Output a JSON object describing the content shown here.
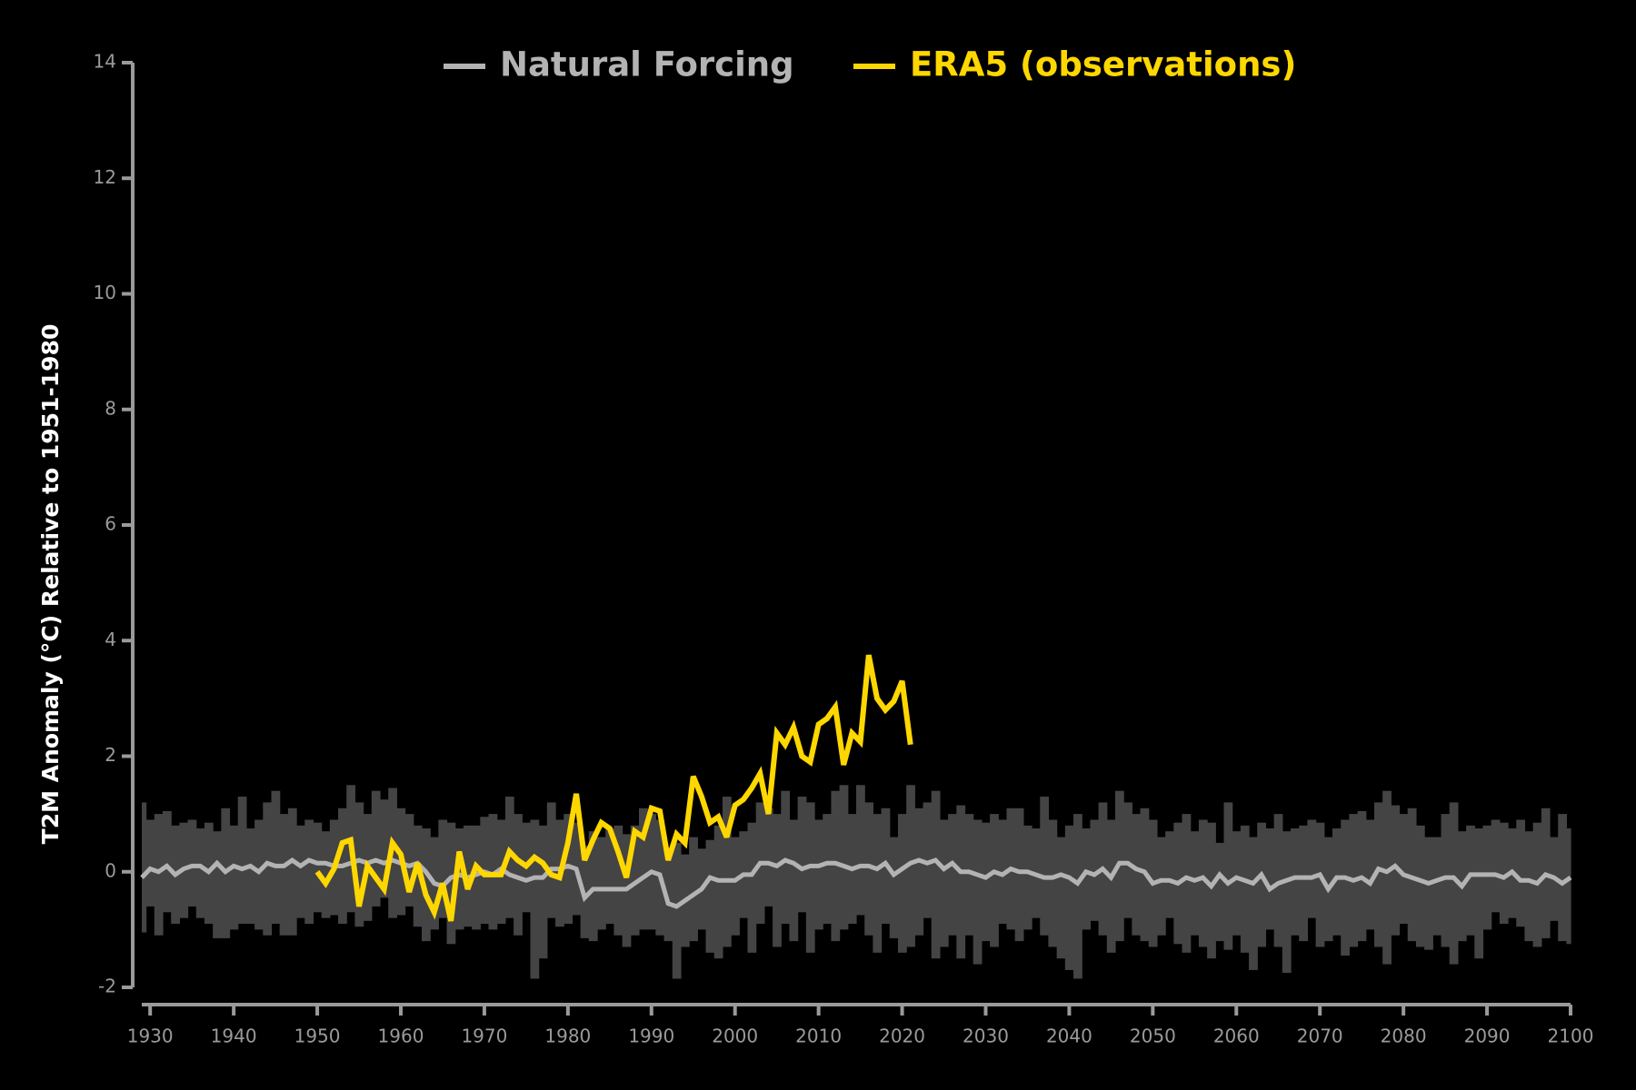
{
  "chart_data": {
    "type": "line",
    "ylabel": "T2M Anomaly (°C) Relative to 1951-1980",
    "xlim": [
      1929,
      2100
    ],
    "ylim": [
      -2,
      14
    ],
    "xticks": [
      1930,
      1940,
      1950,
      1960,
      1970,
      1980,
      1990,
      2000,
      2010,
      2020,
      2030,
      2040,
      2050,
      2060,
      2070,
      2080,
      2090,
      2100
    ],
    "yticks": [
      -2,
      0,
      2,
      4,
      6,
      8,
      10,
      12,
      14
    ],
    "legend": "top",
    "series": [
      {
        "name": "Natural Forcing",
        "color": "#b3b3b3",
        "band_color": "#444444",
        "x": [
          1929,
          1930,
          1931,
          1932,
          1933,
          1934,
          1935,
          1936,
          1937,
          1938,
          1939,
          1940,
          1941,
          1942,
          1943,
          1944,
          1945,
          1946,
          1947,
          1948,
          1949,
          1950,
          1951,
          1952,
          1953,
          1954,
          1955,
          1956,
          1957,
          1958,
          1959,
          1960,
          1961,
          1962,
          1963,
          1964,
          1965,
          1966,
          1967,
          1968,
          1969,
          1970,
          1971,
          1972,
          1973,
          1974,
          1975,
          1976,
          1977,
          1978,
          1979,
          1980,
          1981,
          1982,
          1983,
          1984,
          1985,
          1986,
          1987,
          1988,
          1989,
          1990,
          1991,
          1992,
          1993,
          1994,
          1995,
          1996,
          1997,
          1998,
          1999,
          2000,
          2001,
          2002,
          2003,
          2004,
          2005,
          2006,
          2007,
          2008,
          2009,
          2010,
          2011,
          2012,
          2013,
          2014,
          2015,
          2016,
          2017,
          2018,
          2019,
          2020,
          2021,
          2022,
          2023,
          2024,
          2025,
          2026,
          2027,
          2028,
          2029,
          2030,
          2031,
          2032,
          2033,
          2034,
          2035,
          2036,
          2037,
          2038,
          2039,
          2040,
          2041,
          2042,
          2043,
          2044,
          2045,
          2046,
          2047,
          2048,
          2049,
          2050,
          2051,
          2052,
          2053,
          2054,
          2055,
          2056,
          2057,
          2058,
          2059,
          2060,
          2061,
          2062,
          2063,
          2064,
          2065,
          2066,
          2067,
          2068,
          2069,
          2070,
          2071,
          2072,
          2073,
          2074,
          2075,
          2076,
          2077,
          2078,
          2079,
          2080,
          2081,
          2082,
          2083,
          2084,
          2085,
          2086,
          2087,
          2088,
          2089,
          2090,
          2091,
          2092,
          2093,
          2094,
          2095,
          2096,
          2097,
          2098,
          2099,
          2100
        ],
        "values": [
          -0.1,
          0.05,
          0.0,
          0.1,
          -0.05,
          0.05,
          0.1,
          0.1,
          0.0,
          0.15,
          0.0,
          0.1,
          0.05,
          0.1,
          0.0,
          0.15,
          0.1,
          0.1,
          0.2,
          0.1,
          0.2,
          0.15,
          0.15,
          0.1,
          0.1,
          0.15,
          0.2,
          0.15,
          0.2,
          0.15,
          0.2,
          0.15,
          0.1,
          0.15,
          0.0,
          -0.2,
          -0.25,
          -0.1,
          -0.05,
          -0.1,
          -0.05,
          0.0,
          -0.05,
          0.05,
          -0.05,
          -0.1,
          -0.15,
          -0.1,
          -0.1,
          0.05,
          0.05,
          0.1,
          0.05,
          -0.45,
          -0.3,
          -0.3,
          -0.3,
          -0.3,
          -0.3,
          -0.2,
          -0.1,
          0.0,
          -0.05,
          -0.55,
          -0.6,
          -0.5,
          -0.4,
          -0.3,
          -0.1,
          -0.15,
          -0.15,
          -0.15,
          -0.05,
          -0.05,
          0.15,
          0.15,
          0.1,
          0.2,
          0.15,
          0.05,
          0.1,
          0.1,
          0.15,
          0.15,
          0.1,
          0.05,
          0.1,
          0.1,
          0.05,
          0.15,
          -0.05,
          0.05,
          0.15,
          0.2,
          0.15,
          0.2,
          0.05,
          0.15,
          0.0,
          0.0,
          -0.05,
          -0.1,
          0.0,
          -0.05,
          0.05,
          0.0,
          0.0,
          -0.05,
          -0.1,
          -0.1,
          -0.05,
          -0.1,
          -0.2,
          0.0,
          -0.05,
          0.05,
          -0.1,
          0.15,
          0.15,
          0.05,
          0.0,
          -0.2,
          -0.15,
          -0.15,
          -0.2,
          -0.1,
          -0.15,
          -0.1,
          -0.25,
          -0.05,
          -0.2,
          -0.1,
          -0.15,
          -0.2,
          -0.05,
          -0.3,
          -0.2,
          -0.15,
          -0.1,
          -0.1,
          -0.1,
          -0.05,
          -0.3,
          -0.1,
          -0.1,
          -0.15,
          -0.1,
          -0.2,
          0.05,
          0.0,
          0.1,
          -0.05,
          -0.1,
          -0.15,
          -0.2,
          -0.15,
          -0.1,
          -0.1,
          -0.25,
          -0.05,
          -0.05,
          -0.05,
          -0.05,
          -0.1,
          0.0,
          -0.15,
          -0.15,
          -0.2,
          -0.05,
          -0.1,
          -0.2,
          -0.1
        ],
        "band_upper": [
          1.2,
          0.9,
          1.0,
          1.05,
          0.8,
          0.85,
          0.9,
          0.75,
          0.85,
          0.7,
          1.1,
          0.8,
          1.3,
          0.75,
          0.9,
          1.2,
          1.4,
          1.0,
          1.1,
          0.8,
          0.9,
          0.85,
          0.7,
          0.9,
          1.1,
          1.5,
          1.2,
          1.0,
          1.4,
          1.25,
          1.45,
          1.1,
          1.0,
          0.8,
          0.75,
          0.6,
          0.9,
          0.85,
          0.75,
          0.8,
          0.8,
          0.95,
          1.0,
          0.9,
          1.3,
          1.0,
          0.85,
          0.9,
          0.8,
          1.2,
          0.9,
          1.0,
          0.85,
          0.45,
          0.7,
          0.6,
          0.75,
          0.8,
          0.65,
          0.8,
          1.1,
          1.0,
          0.9,
          0.35,
          0.5,
          0.3,
          0.6,
          0.4,
          0.55,
          0.8,
          1.3,
          0.6,
          0.7,
          0.85,
          1.2,
          1.1,
          1.0,
          1.4,
          0.9,
          1.3,
          1.2,
          0.9,
          1.0,
          1.4,
          1.5,
          1.0,
          1.5,
          1.2,
          1.0,
          1.1,
          0.6,
          1.0,
          1.5,
          1.1,
          1.2,
          1.4,
          0.9,
          1.0,
          1.15,
          1.0,
          0.9,
          0.85,
          1.0,
          0.9,
          1.1,
          1.1,
          0.8,
          0.75,
          1.3,
          0.9,
          0.6,
          0.8,
          1.0,
          0.75,
          0.9,
          1.2,
          0.9,
          1.4,
          1.2,
          1.0,
          1.1,
          0.9,
          0.6,
          0.7,
          0.85,
          1.0,
          0.7,
          0.9,
          0.85,
          0.5,
          1.2,
          0.7,
          0.8,
          0.6,
          0.85,
          0.75,
          1.0,
          0.7,
          0.75,
          0.8,
          0.9,
          0.85,
          0.6,
          0.75,
          0.9,
          1.0,
          1.05,
          0.9,
          1.2,
          1.4,
          1.15,
          1.0,
          1.1,
          0.8,
          0.6,
          0.6,
          1.0,
          1.2,
          0.7,
          0.8,
          0.75,
          0.8,
          0.9,
          0.85,
          0.75,
          0.9,
          0.7,
          0.85,
          1.1,
          0.6,
          1.0,
          0.75
        ],
        "band_lower": [
          -1.05,
          -0.6,
          -1.1,
          -0.7,
          -0.9,
          -0.8,
          -0.6,
          -0.8,
          -0.9,
          -1.15,
          -1.15,
          -1.0,
          -0.9,
          -0.9,
          -1.0,
          -1.1,
          -0.9,
          -1.1,
          -1.1,
          -0.8,
          -0.9,
          -0.7,
          -0.8,
          -0.75,
          -0.9,
          -0.7,
          -0.95,
          -0.85,
          -0.6,
          -0.45,
          -0.8,
          -0.75,
          -0.6,
          -0.95,
          -1.2,
          -1.0,
          -0.8,
          -1.25,
          -1.0,
          -0.95,
          -1.0,
          -0.9,
          -1.0,
          -0.9,
          -0.8,
          -1.1,
          -0.7,
          -1.85,
          -1.5,
          -0.8,
          -0.95,
          -0.9,
          -0.75,
          -1.15,
          -1.2,
          -1.0,
          -0.9,
          -1.1,
          -1.3,
          -1.1,
          -1.0,
          -1.0,
          -1.1,
          -1.2,
          -1.85,
          -1.3,
          -1.2,
          -1.0,
          -1.4,
          -1.5,
          -1.3,
          -1.1,
          -0.8,
          -1.4,
          -0.9,
          -0.6,
          -1.3,
          -0.9,
          -1.2,
          -0.7,
          -1.4,
          -1.0,
          -0.9,
          -1.2,
          -1.0,
          -0.9,
          -0.75,
          -1.1,
          -1.4,
          -0.9,
          -1.15,
          -1.4,
          -1.3,
          -1.1,
          -0.8,
          -1.5,
          -1.3,
          -1.1,
          -1.5,
          -1.1,
          -1.6,
          -1.2,
          -1.3,
          -0.9,
          -1.0,
          -1.2,
          -1.0,
          -0.8,
          -1.1,
          -1.3,
          -1.5,
          -1.7,
          -1.85,
          -1.0,
          -0.85,
          -1.1,
          -1.4,
          -1.2,
          -0.8,
          -1.1,
          -1.2,
          -1.3,
          -1.1,
          -0.8,
          -1.25,
          -1.4,
          -1.1,
          -1.3,
          -1.5,
          -1.2,
          -1.35,
          -1.1,
          -1.4,
          -1.7,
          -1.3,
          -1.0,
          -1.3,
          -1.75,
          -1.1,
          -1.2,
          -0.8,
          -1.3,
          -1.2,
          -1.1,
          -1.45,
          -1.3,
          -1.2,
          -1.0,
          -1.3,
          -1.6,
          -1.1,
          -0.9,
          -1.2,
          -1.3,
          -1.35,
          -1.1,
          -1.3,
          -1.6,
          -1.2,
          -1.1,
          -1.5,
          -1.0,
          -0.7,
          -0.9,
          -0.8,
          -0.95,
          -1.2,
          -1.3,
          -1.15,
          -0.85,
          -1.2,
          -1.25
        ]
      },
      {
        "name": "ERA5 (observations)",
        "color": "#ffd700",
        "x": [
          1950,
          1951,
          1952,
          1953,
          1954,
          1955,
          1956,
          1957,
          1958,
          1959,
          1960,
          1961,
          1962,
          1963,
          1964,
          1965,
          1966,
          1967,
          1968,
          1969,
          1970,
          1971,
          1972,
          1973,
          1974,
          1975,
          1976,
          1977,
          1978,
          1979,
          1980,
          1981,
          1982,
          1983,
          1984,
          1985,
          1986,
          1987,
          1988,
          1989,
          1990,
          1991,
          1992,
          1993,
          1994,
          1995,
          1996,
          1997,
          1998,
          1999,
          2000,
          2001,
          2002,
          2003,
          2004,
          2005,
          2006,
          2007,
          2008,
          2009,
          2010,
          2011,
          2012,
          2013,
          2014,
          2015,
          2016,
          2017,
          2018,
          2019,
          2020,
          2021
        ],
        "values": [
          0.0,
          -0.2,
          0.05,
          0.5,
          0.55,
          -0.6,
          0.1,
          -0.1,
          -0.3,
          0.5,
          0.3,
          -0.35,
          0.15,
          -0.4,
          -0.7,
          -0.2,
          -0.85,
          0.35,
          -0.3,
          0.1,
          -0.05,
          -0.05,
          -0.05,
          0.35,
          0.2,
          0.1,
          0.25,
          0.15,
          -0.05,
          -0.1,
          0.5,
          1.35,
          0.2,
          0.55,
          0.85,
          0.75,
          0.35,
          -0.1,
          0.7,
          0.6,
          1.1,
          1.05,
          0.2,
          0.65,
          0.5,
          1.65,
          1.3,
          0.85,
          0.95,
          0.6,
          1.15,
          1.25,
          1.45,
          1.7,
          1.0,
          2.4,
          2.2,
          2.5,
          2.0,
          1.9,
          2.55,
          2.65,
          2.85,
          1.85,
          2.4,
          2.25,
          3.75,
          3.0,
          2.8,
          2.95,
          3.3,
          2.2
        ]
      }
    ]
  }
}
